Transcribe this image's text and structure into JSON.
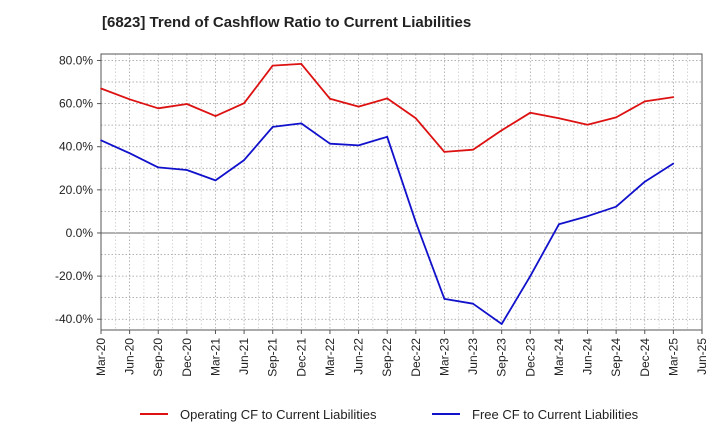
{
  "chart_data": {
    "type": "line",
    "title": "[6823]  Trend of Cashflow Ratio to Current Liabilities",
    "xlabel": "",
    "ylabel": "",
    "x": [
      "Mar-20",
      "Jun-20",
      "Sep-20",
      "Dec-20",
      "Mar-21",
      "Jun-21",
      "Sep-21",
      "Dec-21",
      "Mar-22",
      "Jun-22",
      "Sep-22",
      "Dec-22",
      "Mar-23",
      "Jun-23",
      "Sep-23",
      "Dec-23",
      "Mar-24",
      "Jun-24",
      "Sep-24",
      "Dec-24",
      "Mar-25",
      "Jun-25"
    ],
    "x_tick_labels": [
      "Mar-20",
      "Jun-20",
      "Sep-20",
      "Dec-20",
      "Mar-21",
      "Jun-21",
      "Sep-21",
      "Dec-21",
      "Mar-22",
      "Jun-22",
      "Sep-22",
      "Dec-22",
      "Mar-23",
      "Jun-23",
      "Sep-23",
      "Dec-23",
      "Mar-24",
      "Jun-24",
      "Sep-24",
      "Dec-24",
      "Mar-25",
      "Jun-25"
    ],
    "y_ticks": [
      -40,
      -20,
      0,
      20,
      40,
      60,
      80
    ],
    "y_tick_labels": [
      "-40.0%",
      "-20.0%",
      "0.0%",
      "20.0%",
      "40.0%",
      "60.0%",
      "80.0%"
    ],
    "ylim": [
      -45,
      83
    ],
    "grid": true,
    "legend_position": "bottom",
    "series": [
      {
        "name": "Operating CF to Current Liabilities",
        "color": "#dd1111",
        "values": [
          67.0,
          62.0,
          57.8,
          59.8,
          54.2,
          60.2,
          77.6,
          78.4,
          62.2,
          58.6,
          62.4,
          53.2,
          37.6,
          38.6,
          47.6,
          55.8,
          53.2,
          50.2,
          53.6,
          61.0,
          63.0,
          null
        ]
      },
      {
        "name": "Free CF to Current Liabilities",
        "color": "#1111cc",
        "values": [
          43.0,
          37.0,
          30.4,
          29.2,
          24.4,
          33.8,
          49.2,
          50.8,
          41.4,
          40.6,
          44.6,
          5.0,
          -30.6,
          -32.8,
          -42.2,
          -20.0,
          4.0,
          7.8,
          12.2,
          23.8,
          32.2,
          null
        ]
      }
    ]
  }
}
